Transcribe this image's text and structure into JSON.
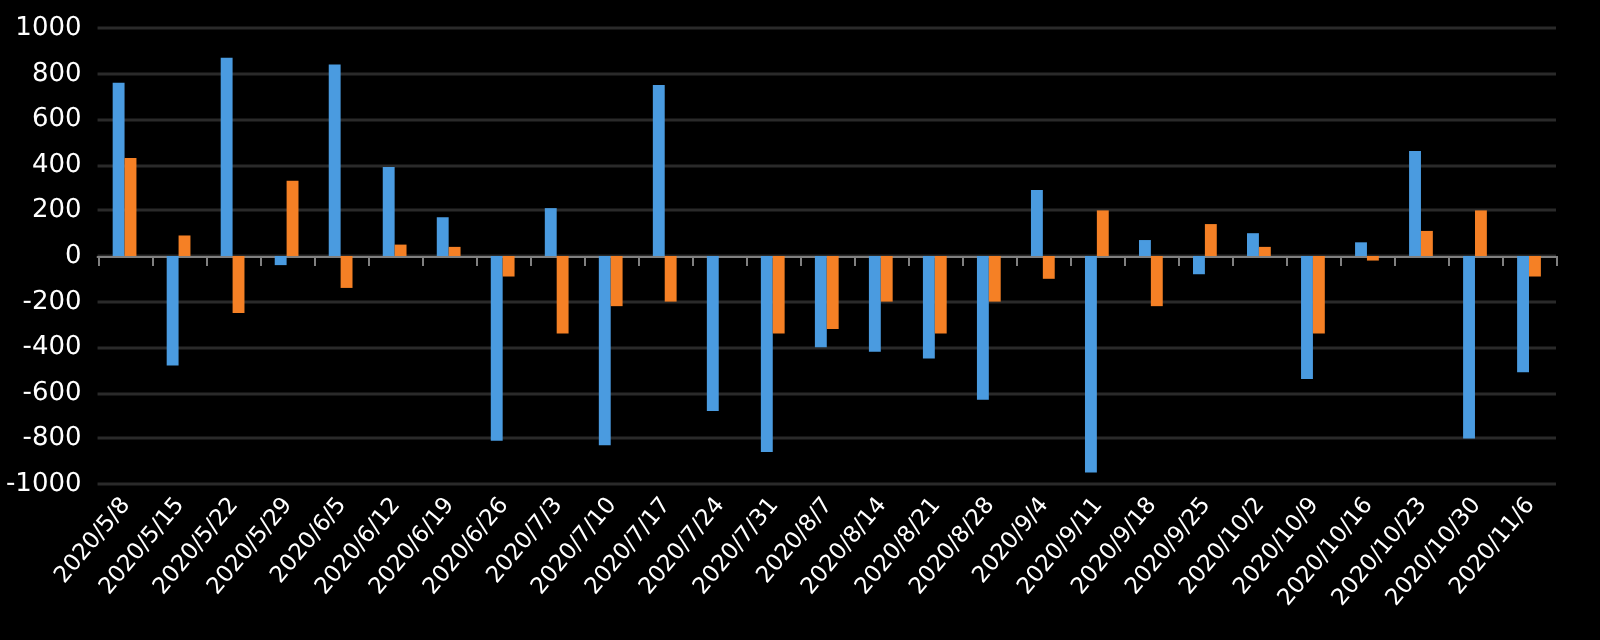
{
  "chart_data": {
    "type": "bar",
    "categories": [
      "2020/5/8",
      "2020/5/15",
      "2020/5/22",
      "2020/5/29",
      "2020/6/5",
      "2020/6/12",
      "2020/6/19",
      "2020/6/26",
      "2020/7/3",
      "2020/7/10",
      "2020/7/17",
      "2020/7/24",
      "2020/7/31",
      "2020/8/7",
      "2020/8/14",
      "2020/8/21",
      "2020/8/28",
      "2020/9/4",
      "2020/9/11",
      "2020/9/18",
      "2020/9/25",
      "2020/10/2",
      "2020/10/9",
      "2020/10/16",
      "2020/10/23",
      "2020/10/30",
      "2020/11/6"
    ],
    "series": [
      {
        "color": "#4a9be0",
        "values": [
          760,
          -480,
          870,
          -40,
          840,
          390,
          170,
          -810,
          210,
          -830,
          750,
          -680,
          -860,
          -400,
          -420,
          -450,
          -630,
          290,
          -950,
          70,
          -80,
          100,
          -540,
          60,
          460,
          -800,
          -510
        ]
      },
      {
        "color": "#f58025",
        "values": [
          430,
          90,
          -250,
          330,
          -140,
          50,
          40,
          -90,
          -340,
          -220,
          -200,
          null,
          -340,
          -320,
          -200,
          -340,
          -200,
          -100,
          200,
          -220,
          140,
          40,
          -340,
          -20,
          110,
          200,
          -90
        ]
      }
    ],
    "ylim": [
      -1000,
      1000
    ],
    "yticks": [
      -1000,
      -800,
      -600,
      -400,
      -200,
      0,
      200,
      400,
      600,
      800,
      1000
    ],
    "grid": "y"
  }
}
